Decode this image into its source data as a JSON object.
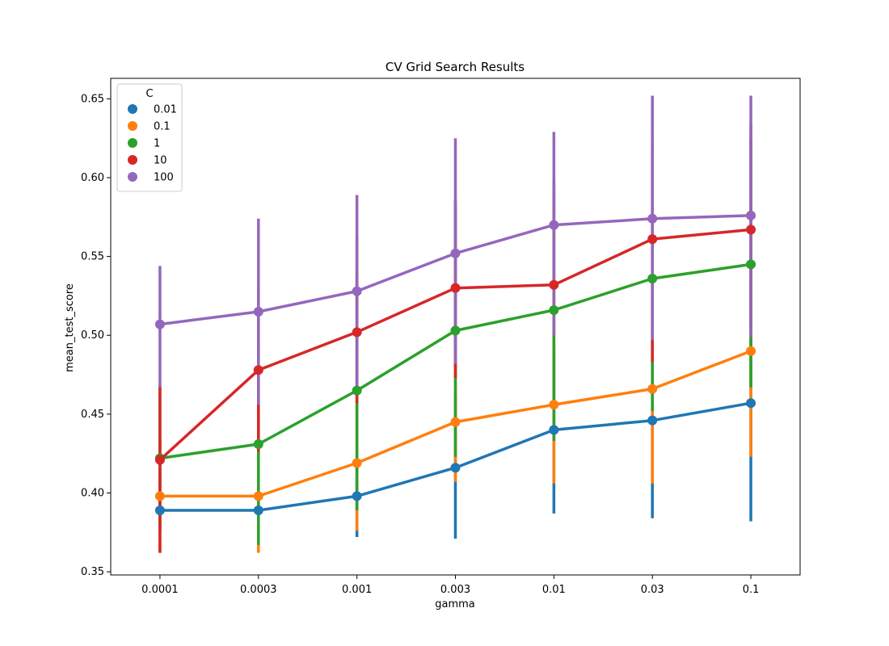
{
  "chart_data": {
    "type": "line",
    "title": "CV Grid Search Results",
    "xlabel": "gamma",
    "ylabel": "mean_test_score",
    "categories": [
      "0.0001",
      "0.0003",
      "0.001",
      "0.003",
      "0.01",
      "0.03",
      "0.1"
    ],
    "ylim": [
      0.348,
      0.663
    ],
    "yticks": [
      0.35,
      0.4,
      0.45,
      0.5,
      0.55,
      0.6,
      0.65
    ],
    "ytick_labels": [
      "0.35",
      "0.40",
      "0.45",
      "0.50",
      "0.55",
      "0.60",
      "0.65"
    ],
    "grid": false,
    "legend": {
      "title": "C",
      "placement": "top-left"
    },
    "series": [
      {
        "name": "0.01",
        "color": "#1f77b4",
        "values": [
          0.389,
          0.389,
          0.398,
          0.416,
          0.44,
          0.446,
          0.457
        ],
        "err_low": [
          0.385,
          0.385,
          0.372,
          0.371,
          0.387,
          0.384,
          0.382
        ],
        "err_high": [
          0.392,
          0.392,
          0.424,
          0.461,
          0.493,
          0.508,
          0.532
        ]
      },
      {
        "name": "0.1",
        "color": "#ff7f0e",
        "values": [
          0.398,
          0.398,
          0.419,
          0.445,
          0.456,
          0.466,
          0.49
        ],
        "err_low": [
          0.362,
          0.362,
          0.376,
          0.407,
          0.406,
          0.406,
          0.423
        ],
        "err_high": [
          0.433,
          0.433,
          0.462,
          0.483,
          0.506,
          0.527,
          0.557
        ]
      },
      {
        "name": "1",
        "color": "#2ca02c",
        "values": [
          0.422,
          0.431,
          0.465,
          0.503,
          0.516,
          0.536,
          0.545
        ],
        "err_low": [
          0.376,
          0.367,
          0.389,
          0.423,
          0.433,
          0.452,
          0.467
        ],
        "err_high": [
          0.469,
          0.495,
          0.541,
          0.583,
          0.599,
          0.62,
          0.624
        ]
      },
      {
        "name": "10",
        "color": "#d62728",
        "values": [
          0.421,
          0.478,
          0.502,
          0.53,
          0.532,
          0.561,
          0.567
        ],
        "err_low": [
          0.362,
          0.426,
          0.457,
          0.473,
          0.5,
          0.483,
          0.506
        ],
        "err_high": [
          0.467,
          0.532,
          0.563,
          0.586,
          0.595,
          0.625,
          0.634
        ]
      },
      {
        "name": "100",
        "color": "#9467bd",
        "values": [
          0.507,
          0.515,
          0.528,
          0.552,
          0.57,
          0.574,
          0.576
        ],
        "err_low": [
          0.467,
          0.456,
          0.468,
          0.482,
          0.5,
          0.497,
          0.499
        ],
        "err_high": [
          0.544,
          0.574,
          0.589,
          0.625,
          0.629,
          0.652,
          0.652
        ]
      }
    ]
  }
}
